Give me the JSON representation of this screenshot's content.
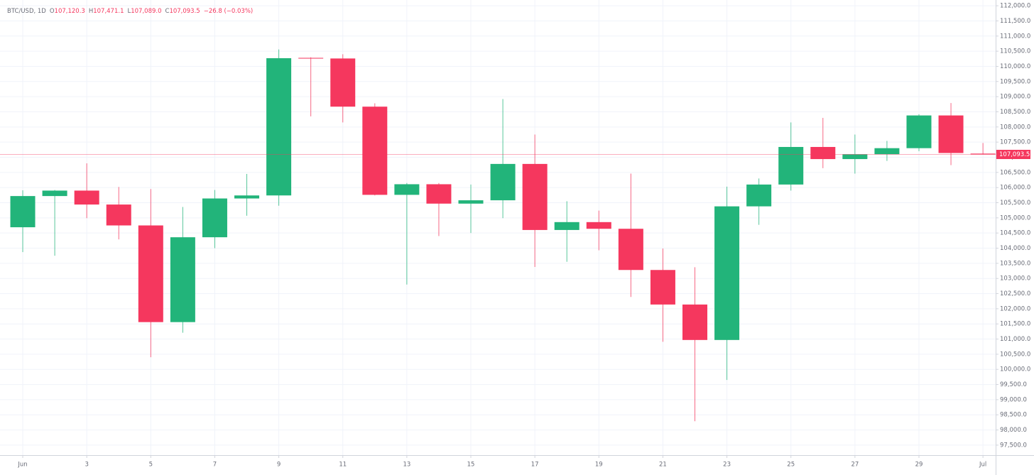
{
  "chart_data": {
    "type": "candlestick",
    "header": {
      "symbol": "BTC/USD, 1D",
      "ohlc": [
        {
          "key": "O",
          "text": "107,120.3"
        },
        {
          "key": "H",
          "text": "107,471.1"
        },
        {
          "key": "L",
          "text": "107,089.0"
        },
        {
          "key": "C",
          "text": "107,093.5"
        }
      ],
      "change": "−26.8 (−0.03%)"
    },
    "categories": [
      "Jun",
      null,
      "3",
      null,
      "5",
      null,
      "7",
      null,
      "9",
      null,
      "11",
      null,
      "13",
      null,
      "15",
      null,
      "17",
      null,
      "19",
      null,
      "21",
      null,
      "23",
      null,
      "25",
      null,
      "27",
      null,
      "29",
      null,
      "Jul"
    ],
    "open": [
      104690,
      105720,
      105900,
      105440,
      104750,
      101560,
      104360,
      105640,
      105740,
      110280,
      110260,
      108670,
      105760,
      106110,
      105470,
      105580,
      106780,
      104600,
      104860,
      104640,
      103280,
      102140,
      100970,
      105380,
      106100,
      107340,
      106940,
      107100,
      107300,
      108380,
      107120.3
    ],
    "high": [
      105910,
      105920,
      106800,
      106020,
      105950,
      105360,
      105920,
      106450,
      110560,
      110300,
      110400,
      108780,
      106150,
      106150,
      106100,
      108920,
      107750,
      105550,
      105240,
      106460,
      103990,
      103370,
      106030,
      106300,
      108150,
      108300,
      107750,
      107540,
      108420,
      108790,
      107471.1
    ],
    "low": [
      103870,
      103750,
      104990,
      104290,
      100400,
      101210,
      104000,
      105070,
      105400,
      108350,
      108150,
      105740,
      102800,
      104400,
      104500,
      104990,
      103380,
      103550,
      103930,
      102390,
      100910,
      98290,
      99650,
      104770,
      105900,
      106640,
      106460,
      106880,
      107200,
      106740,
      107089.0
    ],
    "close": [
      105720,
      105900,
      105440,
      104750,
      101560,
      104360,
      105640,
      105740,
      110270,
      110260,
      108670,
      105760,
      106110,
      105470,
      105580,
      106780,
      104600,
      104860,
      104640,
      103280,
      102140,
      100970,
      105380,
      106100,
      107340,
      106940,
      107100,
      107300,
      108380,
      107140,
      107093.5
    ],
    "up_color": "#22b47a",
    "down_color": "#f5375e",
    "ylim": [
      97170,
      112190
    ],
    "yticks": [
      {
        "value": 97500,
        "label": "97,500.0"
      },
      {
        "value": 98000,
        "label": "98,000.0"
      },
      {
        "value": 98500,
        "label": "98,500.0"
      },
      {
        "value": 99000,
        "label": "99,000.0"
      },
      {
        "value": 99500,
        "label": "99,500.0"
      },
      {
        "value": 100000,
        "label": "100,000.0"
      },
      {
        "value": 100500,
        "label": "100,500.0"
      },
      {
        "value": 101000,
        "label": "101,000.0"
      },
      {
        "value": 101500,
        "label": "101,500.0"
      },
      {
        "value": 102000,
        "label": "102,000.0"
      },
      {
        "value": 102500,
        "label": "102,500.0"
      },
      {
        "value": 103000,
        "label": "103,000.0"
      },
      {
        "value": 103500,
        "label": "103,500.0"
      },
      {
        "value": 104000,
        "label": "104,000.0"
      },
      {
        "value": 104500,
        "label": "104,500.0"
      },
      {
        "value": 105000,
        "label": "105,000.0"
      },
      {
        "value": 105500,
        "label": "105,500.0"
      },
      {
        "value": 106000,
        "label": "106,000.0"
      },
      {
        "value": 106500,
        "label": "106,500.0"
      },
      {
        "value": 107000,
        "label": "107,000.0"
      },
      {
        "value": 107500,
        "label": "107,500.0"
      },
      {
        "value": 108000,
        "label": "108,000.0"
      },
      {
        "value": 108500,
        "label": "108,500.0"
      },
      {
        "value": 109000,
        "label": "109,000.0"
      },
      {
        "value": 109500,
        "label": "109,500.0"
      },
      {
        "value": 110000,
        "label": "110,000.0"
      },
      {
        "value": 110500,
        "label": "110,500.0"
      },
      {
        "value": 111000,
        "label": "111,000.0"
      },
      {
        "value": 111500,
        "label": "111,500.0"
      },
      {
        "value": 112000,
        "label": "112,000.0"
      }
    ],
    "last_price": {
      "value": 107093.5,
      "label": "107,093.5"
    },
    "grid": true
  }
}
